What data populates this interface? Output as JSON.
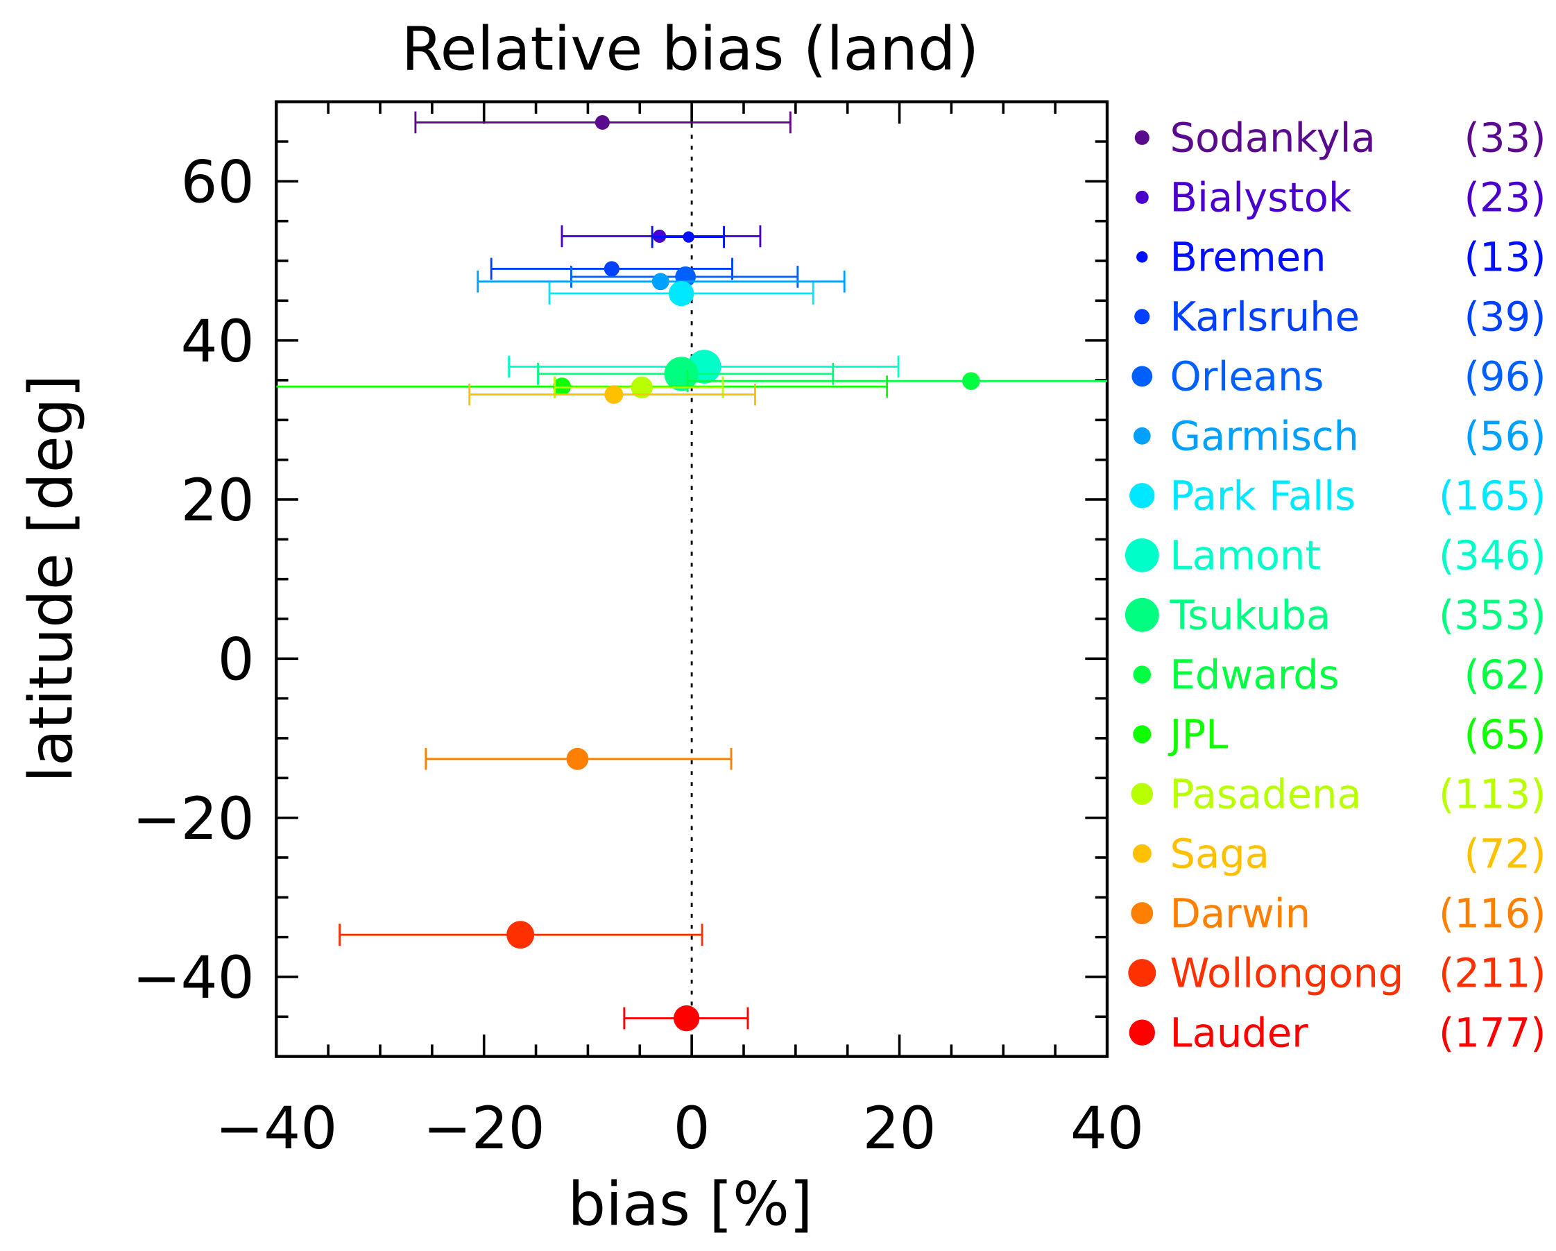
{
  "chart_data": {
    "type": "scatter",
    "title": "Relative bias (land)",
    "xlabel": "bias [%]",
    "ylabel": "latitude [deg]",
    "xlim": [
      -40,
      40
    ],
    "ylim": [
      -50,
      70
    ],
    "xticks": [
      -40,
      -20,
      0,
      20,
      40
    ],
    "xtick_labels": [
      "−40",
      "−20",
      "0",
      "20",
      "40"
    ],
    "yticks": [
      -40,
      -20,
      0,
      20,
      40,
      60
    ],
    "ytick_labels": [
      "−40",
      "−20",
      "0",
      "20",
      "40",
      "60"
    ],
    "reference_line": {
      "x": 0,
      "style": "dotted"
    },
    "legend_position": "right",
    "series": [
      {
        "name": "Sodankyla",
        "count": "(33)",
        "n": 33,
        "bias": -8.6,
        "lat": 67.4,
        "err_low": -26.6,
        "err_high": 9.5,
        "color": "#5a0a8c"
      },
      {
        "name": "Bialystok",
        "count": "(23)",
        "n": 23,
        "bias": -3.1,
        "lat": 53.1,
        "err_low": -12.5,
        "err_high": 6.6,
        "color": "#4a00cc"
      },
      {
        "name": "Bremen",
        "count": "(13)",
        "n": 13,
        "bias": -0.3,
        "lat": 53.0,
        "err_low": -3.8,
        "err_high": 3.1,
        "color": "#0010ff"
      },
      {
        "name": "Karlsruhe",
        "count": "(39)",
        "n": 39,
        "bias": -7.7,
        "lat": 49.0,
        "err_low": -19.3,
        "err_high": 3.9,
        "color": "#0040ff"
      },
      {
        "name": "Orleans",
        "count": "(96)",
        "n": 96,
        "bias": -0.6,
        "lat": 48.0,
        "err_low": -11.6,
        "err_high": 10.2,
        "color": "#0060ff"
      },
      {
        "name": "Garmisch",
        "count": "(56)",
        "n": 56,
        "bias": -3.0,
        "lat": 47.4,
        "err_low": -20.6,
        "err_high": 14.7,
        "color": "#00a0ff"
      },
      {
        "name": "Park Falls",
        "count": "(165)",
        "n": 165,
        "bias": -1.0,
        "lat": 45.9,
        "err_low": -13.7,
        "err_high": 11.7,
        "color": "#00e8ff"
      },
      {
        "name": "Lamont",
        "count": "(346)",
        "n": 346,
        "bias": 1.2,
        "lat": 36.7,
        "err_low": -17.6,
        "err_high": 19.9,
        "color": "#00ffc8"
      },
      {
        "name": "Tsukuba",
        "count": "(353)",
        "n": 353,
        "bias": -1.0,
        "lat": 35.8,
        "err_low": -14.8,
        "err_high": 13.6,
        "color": "#00ff80"
      },
      {
        "name": "Edwards",
        "count": "(62)",
        "n": 62,
        "bias": 26.9,
        "lat": 34.9,
        "err_low": -0.4,
        "err_high": 55,
        "color": "#00ff40"
      },
      {
        "name": "JPL",
        "count": "(65)",
        "n": 65,
        "bias": -12.5,
        "lat": 34.2,
        "err_low": -53,
        "err_high": 18.8,
        "color": "#10ff00"
      },
      {
        "name": "Pasadena",
        "count": "(113)",
        "n": 113,
        "bias": -4.8,
        "lat": 34.1,
        "err_low": -13.2,
        "err_high": 3.0,
        "color": "#b8ff00"
      },
      {
        "name": "Saga",
        "count": "(72)",
        "n": 72,
        "bias": -7.5,
        "lat": 33.2,
        "err_low": -21.4,
        "err_high": 6.1,
        "color": "#ffc000"
      },
      {
        "name": "Darwin",
        "count": "(116)",
        "n": 116,
        "bias": -11.0,
        "lat": -12.6,
        "err_low": -25.6,
        "err_high": 3.8,
        "color": "#ff8000"
      },
      {
        "name": "Wollongong",
        "count": "(211)",
        "n": 211,
        "bias": -16.5,
        "lat": -34.7,
        "err_low": -33.9,
        "err_high": 1.0,
        "color": "#ff3000"
      },
      {
        "name": "Lauder",
        "count": "(177)",
        "n": 177,
        "bias": -0.5,
        "lat": -45.2,
        "err_low": -6.5,
        "err_high": 5.4,
        "color": "#ff0000"
      }
    ]
  }
}
